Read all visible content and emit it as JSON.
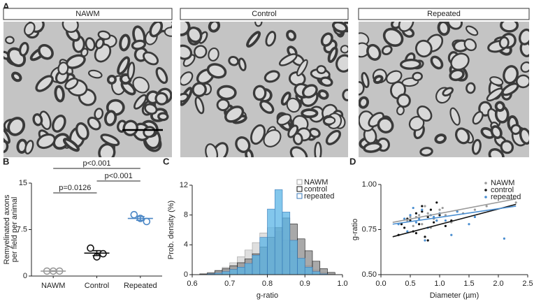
{
  "panel_labels": [
    "A",
    "B",
    "C",
    "D"
  ],
  "images": [
    {
      "label": "NAWM"
    },
    {
      "label": "Control"
    },
    {
      "label": "Repeated"
    }
  ],
  "chart_data": [
    {
      "type": "strip",
      "ylabel": [
        "Remyelinated axons",
        "per field per animal"
      ],
      "categories": [
        "NAWM",
        "Control",
        "Repeated"
      ],
      "points": [
        [
          0.8,
          0.8,
          0.8
        ],
        [
          4.5,
          3.1,
          3.6
        ],
        [
          9.9,
          9.3,
          8.8
        ]
      ],
      "mean": [
        0.8,
        3.7,
        9.3
      ],
      "sem": [
        0.05,
        0.4,
        0.3
      ],
      "colors": [
        "#9a9a9a",
        "#111111",
        "#4a86c5"
      ],
      "ylim": [
        0,
        15
      ],
      "yticks": [
        0,
        7.5,
        15
      ],
      "annotations": [
        "p<0.001",
        "p<0.001",
        "p=0.0126"
      ]
    },
    {
      "type": "histogram",
      "xlabel": "g-ratio",
      "ylabel": "Prob. density (%)",
      "bins": [
        0.6,
        0.62,
        0.64,
        0.66,
        0.68,
        0.7,
        0.72,
        0.74,
        0.76,
        0.78,
        0.8,
        0.82,
        0.84,
        0.86,
        0.88,
        0.9,
        0.92,
        0.94,
        0.96,
        0.98,
        1.0
      ],
      "series": [
        {
          "name": "NAWM",
          "color": "#d4d4d4",
          "edge": "#a0a0a0",
          "values": [
            0,
            0.1,
            0.3,
            0.6,
            1.0,
            1.6,
            2.4,
            3.3,
            4.3,
            5.6,
            6.3,
            5.8,
            4.6,
            3.2,
            2.1,
            1.2,
            0.6,
            0.3,
            0.1,
            0
          ]
        },
        {
          "name": "control",
          "color": "#8c8c8c",
          "edge": "#111111",
          "values": [
            0,
            0.1,
            0.2,
            0.5,
            0.8,
            1.2,
            1.6,
            2.1,
            2.8,
            3.7,
            5.0,
            6.3,
            7.6,
            6.8,
            4.8,
            3.2,
            1.8,
            0.8,
            0.3,
            0
          ]
        },
        {
          "name": "repeated",
          "color": "#5ab4e5",
          "edge": "#3a7ab8",
          "values": [
            0,
            0,
            0.1,
            0.2,
            0.4,
            0.7,
            1.0,
            1.5,
            2.6,
            5.0,
            8.8,
            11.4,
            8.4,
            4.6,
            2.2,
            1.0,
            0.4,
            0.1,
            0,
            0
          ]
        }
      ],
      "xlim": [
        0.6,
        1.0
      ],
      "xticks": [
        0.6,
        0.7,
        0.8,
        0.9,
        {
          "value": 1.0,
          "label": "1.0"
        }
      ],
      "ylim": [
        0,
        12
      ],
      "yticks": [
        0,
        4,
        8,
        12
      ]
    },
    {
      "type": "scatter",
      "xlabel": "Diameter (µm)",
      "ylabel": "g-ratio",
      "series": [
        {
          "name": "NAWM",
          "color": "#9a9a9a",
          "x": [
            0.45,
            0.6,
            0.7,
            0.8,
            0.9,
            1.0,
            1.1,
            1.2,
            1.3,
            0.55,
            0.75,
            0.95,
            1.4,
            1.6,
            0.65,
            0.85,
            1.05,
            1.8,
            0.5,
            2.3
          ],
          "values": [
            0.8,
            0.82,
            0.78,
            0.84,
            0.81,
            0.86,
            0.83,
            0.79,
            0.85,
            0.77,
            0.88,
            0.8,
            0.84,
            0.86,
            0.83,
            0.76,
            0.87,
            0.88,
            0.82,
            0.9
          ],
          "fit": {
            "x": [
              0.2,
              2.3
            ],
            "y": [
              0.79,
              0.92
            ]
          }
        },
        {
          "name": "control",
          "color": "#111111",
          "x": [
            0.3,
            0.4,
            0.5,
            0.55,
            0.6,
            0.65,
            0.7,
            0.75,
            0.8,
            0.85,
            0.9,
            1.0,
            1.1,
            0.45,
            0.6,
            0.7,
            0.95,
            1.2,
            0.35,
            0.8
          ],
          "values": [
            0.72,
            0.76,
            0.8,
            0.74,
            0.84,
            0.78,
            0.88,
            0.71,
            0.82,
            0.86,
            0.79,
            0.83,
            0.77,
            0.81,
            0.73,
            0.85,
            0.9,
            0.8,
            0.78,
            0.69
          ],
          "fit": {
            "x": [
              0.2,
              2.3
            ],
            "y": [
              0.71,
              0.89
            ]
          }
        },
        {
          "name": "repeated",
          "color": "#4a8ed0",
          "x": [
            0.3,
            0.4,
            0.5,
            0.6,
            0.7,
            0.8,
            0.9,
            1.0,
            1.1,
            1.2,
            1.3,
            1.5,
            0.45,
            0.55,
            0.65,
            0.75,
            0.85,
            0.95,
            1.6,
            2.1
          ],
          "values": [
            0.78,
            0.81,
            0.83,
            0.79,
            0.86,
            0.76,
            0.82,
            0.84,
            0.8,
            0.72,
            0.85,
            0.78,
            0.74,
            0.87,
            0.81,
            0.69,
            0.83,
            0.8,
            0.82,
            0.7
          ],
          "fit": {
            "x": [
              0.2,
              2.3
            ],
            "y": [
              0.78,
              0.88
            ]
          }
        }
      ],
      "xlim": [
        0,
        2.5
      ],
      "xticks": [
        {
          "value": 0,
          "label": "0.0"
        },
        0.5,
        {
          "value": 1.0,
          "label": "1.0"
        },
        1.5,
        {
          "value": 2.0,
          "label": "2.0"
        },
        2.5
      ],
      "ylim": [
        0.5,
        1.0
      ],
      "yticks": [
        {
          "value": 0.5,
          "label": "0.50"
        },
        0.75,
        {
          "value": 1.0,
          "label": "1.00"
        }
      ]
    }
  ]
}
